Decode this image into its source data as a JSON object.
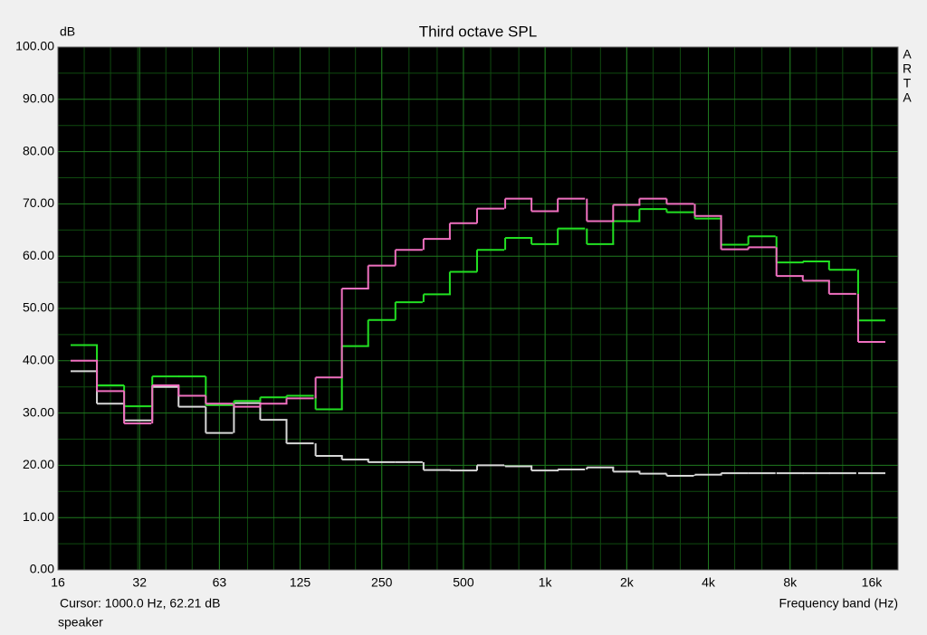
{
  "chart_data": {
    "type": "step",
    "title": "Third octave SPL",
    "y_label": "dB",
    "x_label": "Frequency band (Hz)",
    "cursor_text": "Cursor:  1000.0 Hz, 62.21 dB",
    "trace_name": "speaker",
    "brand": [
      "A",
      "R",
      "T",
      "A"
    ],
    "log_x": true,
    "grid": true,
    "xlim": [
      16,
      20000
    ],
    "ylim": [
      0,
      100
    ],
    "xticks": [
      16,
      32,
      63,
      125,
      250,
      500,
      {
        "value": 1000,
        "label": "1k"
      },
      {
        "value": 2000,
        "label": "2k"
      },
      {
        "value": 4000,
        "label": "4k"
      },
      {
        "value": 8000,
        "label": "8k"
      },
      {
        "value": 16000,
        "label": "16k"
      }
    ],
    "yticks": [
      {
        "value": 0,
        "label": "0.00"
      },
      {
        "value": 10,
        "label": "10.00"
      },
      {
        "value": 20,
        "label": "20.00"
      },
      {
        "value": 30,
        "label": "30.00"
      },
      {
        "value": 40,
        "label": "40.00"
      },
      {
        "value": 50,
        "label": "50.00"
      },
      {
        "value": 60,
        "label": "60.00"
      },
      {
        "value": 70,
        "label": "70.00"
      },
      {
        "value": 80,
        "label": "80.00"
      },
      {
        "value": 90,
        "label": "90.00"
      },
      {
        "value": 100,
        "label": "100.00"
      }
    ],
    "x": [
      20,
      25,
      31.5,
      40,
      50,
      63,
      80,
      100,
      125,
      160,
      200,
      250,
      315,
      400,
      500,
      630,
      800,
      1000,
      1250,
      1600,
      2000,
      2500,
      3150,
      4000,
      5000,
      6300,
      8000,
      10000,
      12500,
      16000
    ],
    "series": [
      {
        "color": "#d8d8d8",
        "values": [
          38,
          31.8,
          28.6,
          35,
          31.2,
          26.2,
          31.9,
          28.7,
          24.2,
          21.8,
          21.1,
          20.6,
          20.6,
          19.1,
          19,
          20,
          19.8,
          19,
          19.2,
          19.6,
          18.8,
          18.4,
          18,
          18.2,
          18.5,
          18.5,
          18.5,
          18.5,
          18.5,
          18.5
        ]
      },
      {
        "color": "#22e022",
        "values": [
          43,
          35.3,
          31.3,
          37,
          37,
          31.5,
          32.3,
          33,
          33.3,
          30.7,
          42.8,
          47.8,
          51.2,
          52.7,
          57,
          61.2,
          63.5,
          62.3,
          65.3,
          62.3,
          66.7,
          69,
          68.4,
          67.2,
          62.2,
          63.8,
          58.8,
          59,
          57.4,
          47.7
        ]
      },
      {
        "color": "#f070c0",
        "values": [
          40,
          34.2,
          28,
          35.3,
          33.3,
          31.8,
          31.2,
          31.8,
          32.8,
          36.8,
          53.8,
          58.2,
          61.2,
          63.3,
          66.3,
          69.1,
          71,
          68.6,
          71,
          66.7,
          69.8,
          71,
          70,
          67.7,
          61.3,
          61.7,
          56.2,
          55.3,
          52.8,
          43.6
        ]
      }
    ]
  }
}
